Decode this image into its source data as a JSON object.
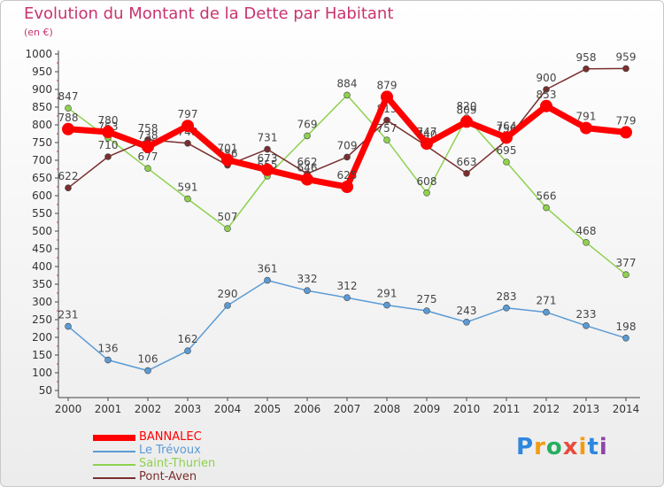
{
  "title": "Evolution du Montant de la Dette par Habitant",
  "subtitle": "(en €)",
  "logo_text": "Proxiti",
  "chart_data": {
    "type": "line",
    "title": "Evolution du Montant de la Dette par Habitant",
    "ylabel": "(en €)",
    "xlabel": "",
    "ylim": [
      50,
      1000
    ],
    "grid": false,
    "legend_position": "bottom-left",
    "x": [
      "2000",
      "2001",
      "2002",
      "2003",
      "2004",
      "2005",
      "2006",
      "2007",
      "2008",
      "2009",
      "2010",
      "2011",
      "2012",
      "2013",
      "2014"
    ],
    "yticks": [
      "50",
      "100",
      "150",
      "200",
      "250",
      "300",
      "350",
      "400",
      "450",
      "500",
      "550",
      "600",
      "650",
      "700",
      "750",
      "800",
      "850",
      "900",
      "950",
      "1000"
    ],
    "series": [
      {
        "name": "Le Trévoux",
        "color": "#5b9bd5",
        "values": [
          231,
          136,
          106,
          162,
          290,
          361,
          332,
          312,
          291,
          275,
          243,
          283,
          271,
          233,
          198
        ]
      },
      {
        "name": "Saint-Thurien",
        "color": "#8ed14e",
        "values": [
          847,
          763,
          677,
          591,
          507,
          655,
          769,
          884,
          757,
          608,
          820,
          695,
          566,
          468,
          377
        ]
      },
      {
        "name": "Pont-Aven",
        "color": "#7a2e2e",
        "values": [
          622,
          710,
          758,
          748,
          686,
          731,
          662,
          709,
          813,
          740,
          663,
          756,
          900,
          958,
          959
        ]
      },
      {
        "name": "BANNALEC",
        "color": "#ff0000",
        "values": [
          788,
          780,
          738,
          797,
          701,
          673,
          646,
          625,
          879,
          747,
          809,
          764,
          853,
          791,
          779
        ]
      }
    ],
    "legend_order": [
      "BANNALEC",
      "Le Trévoux",
      "Saint-Thurien",
      "Pont-Aven"
    ]
  }
}
